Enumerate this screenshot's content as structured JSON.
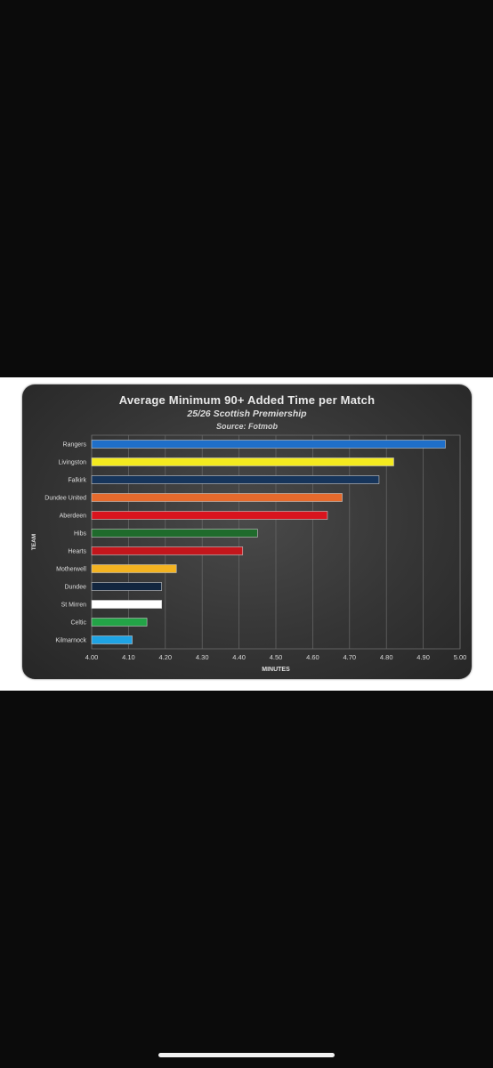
{
  "chart_data": {
    "type": "bar",
    "orientation": "horizontal",
    "title": "Average Minimum 90+ Added Time per Match",
    "subtitle": "25/26 Scottish Premiership",
    "source": "Source: Fotmob",
    "xlabel": "MINUTES",
    "ylabel": "TEAM",
    "xlim": [
      4.0,
      5.0
    ],
    "x_ticks": [
      "4.00",
      "4.10",
      "4.20",
      "4.30",
      "4.40",
      "4.50",
      "4.60",
      "4.70",
      "4.80",
      "4.90",
      "5.00"
    ],
    "grid": "vertical",
    "categories": [
      "Rangers",
      "Livingston",
      "Falkirk",
      "Dundee United",
      "Aberdeen",
      "Hibs",
      "Hearts",
      "Motherwell",
      "Dundee",
      "St Mirren",
      "Celtic",
      "Kilmarnock"
    ],
    "values": [
      4.96,
      4.82,
      4.78,
      4.68,
      4.64,
      4.45,
      4.41,
      4.23,
      4.19,
      4.19,
      4.15,
      4.11
    ],
    "colors": [
      "#1f6fc9",
      "#f4ea1f",
      "#17355b",
      "#e66a2c",
      "#d9141e",
      "#1f6b2c",
      "#c3161c",
      "#f3b321",
      "#12263f",
      "#ffffff",
      "#23a447",
      "#1ea3e4"
    ]
  }
}
